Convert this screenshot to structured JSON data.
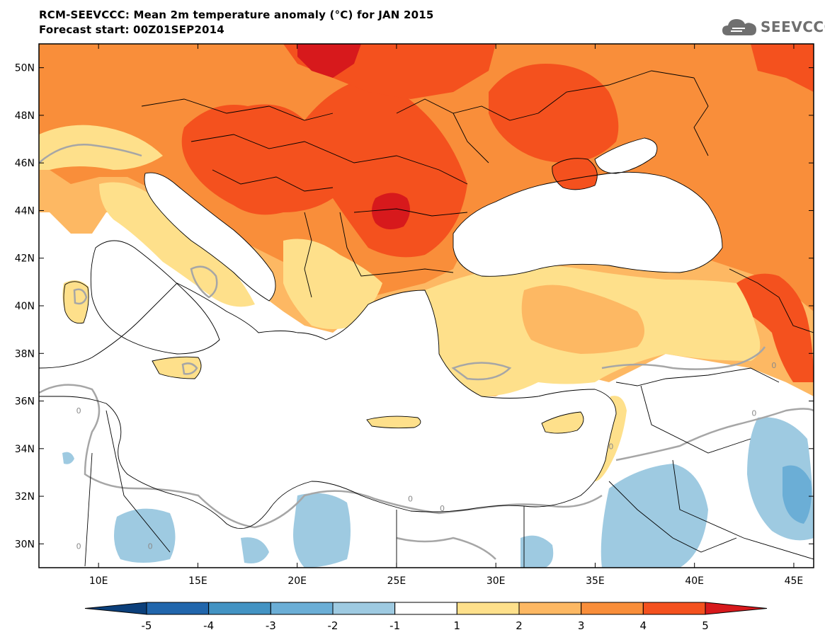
{
  "header": {
    "title": "RCM-SEEVCCC: Mean 2m temperature anomaly (°C) for JAN 2015",
    "subtitle": "Forecast start: 00Z01SEP2014",
    "logo_text": "SEEVCCC",
    "logo_icon": "cloud-logo-icon"
  },
  "map": {
    "lon_range": [
      7,
      46
    ],
    "lat_range": [
      29,
      51
    ],
    "lat_ticks": [
      {
        "value": 30,
        "label": "30N"
      },
      {
        "value": 32,
        "label": "32N"
      },
      {
        "value": 34,
        "label": "34N"
      },
      {
        "value": 36,
        "label": "36N"
      },
      {
        "value": 38,
        "label": "38N"
      },
      {
        "value": 40,
        "label": "40N"
      },
      {
        "value": 42,
        "label": "42N"
      },
      {
        "value": 44,
        "label": "44N"
      },
      {
        "value": 46,
        "label": "46N"
      },
      {
        "value": 48,
        "label": "48N"
      },
      {
        "value": 50,
        "label": "50N"
      }
    ],
    "lon_ticks": [
      {
        "value": 10,
        "label": "10E"
      },
      {
        "value": 15,
        "label": "15E"
      },
      {
        "value": 20,
        "label": "20E"
      },
      {
        "value": 25,
        "label": "25E"
      },
      {
        "value": 30,
        "label": "30E"
      },
      {
        "value": 35,
        "label": "35E"
      },
      {
        "value": 40,
        "label": "40E"
      },
      {
        "value": 45,
        "label": "45E"
      }
    ],
    "contour_labels": [
      "0",
      "0",
      "0",
      "0",
      "0",
      "0",
      "0",
      "0"
    ]
  },
  "colorbar": {
    "levels": [
      "-5",
      "-4",
      "-3",
      "-2",
      "-1",
      "1",
      "2",
      "3",
      "4",
      "5"
    ],
    "colors": [
      "#0b3f7a",
      "#2166ac",
      "#4393c3",
      "#6baed6",
      "#9ecae1",
      "#ffffff",
      "#fee08b",
      "#fdb863",
      "#f98e3a",
      "#f4511e",
      "#d7191c"
    ]
  }
}
